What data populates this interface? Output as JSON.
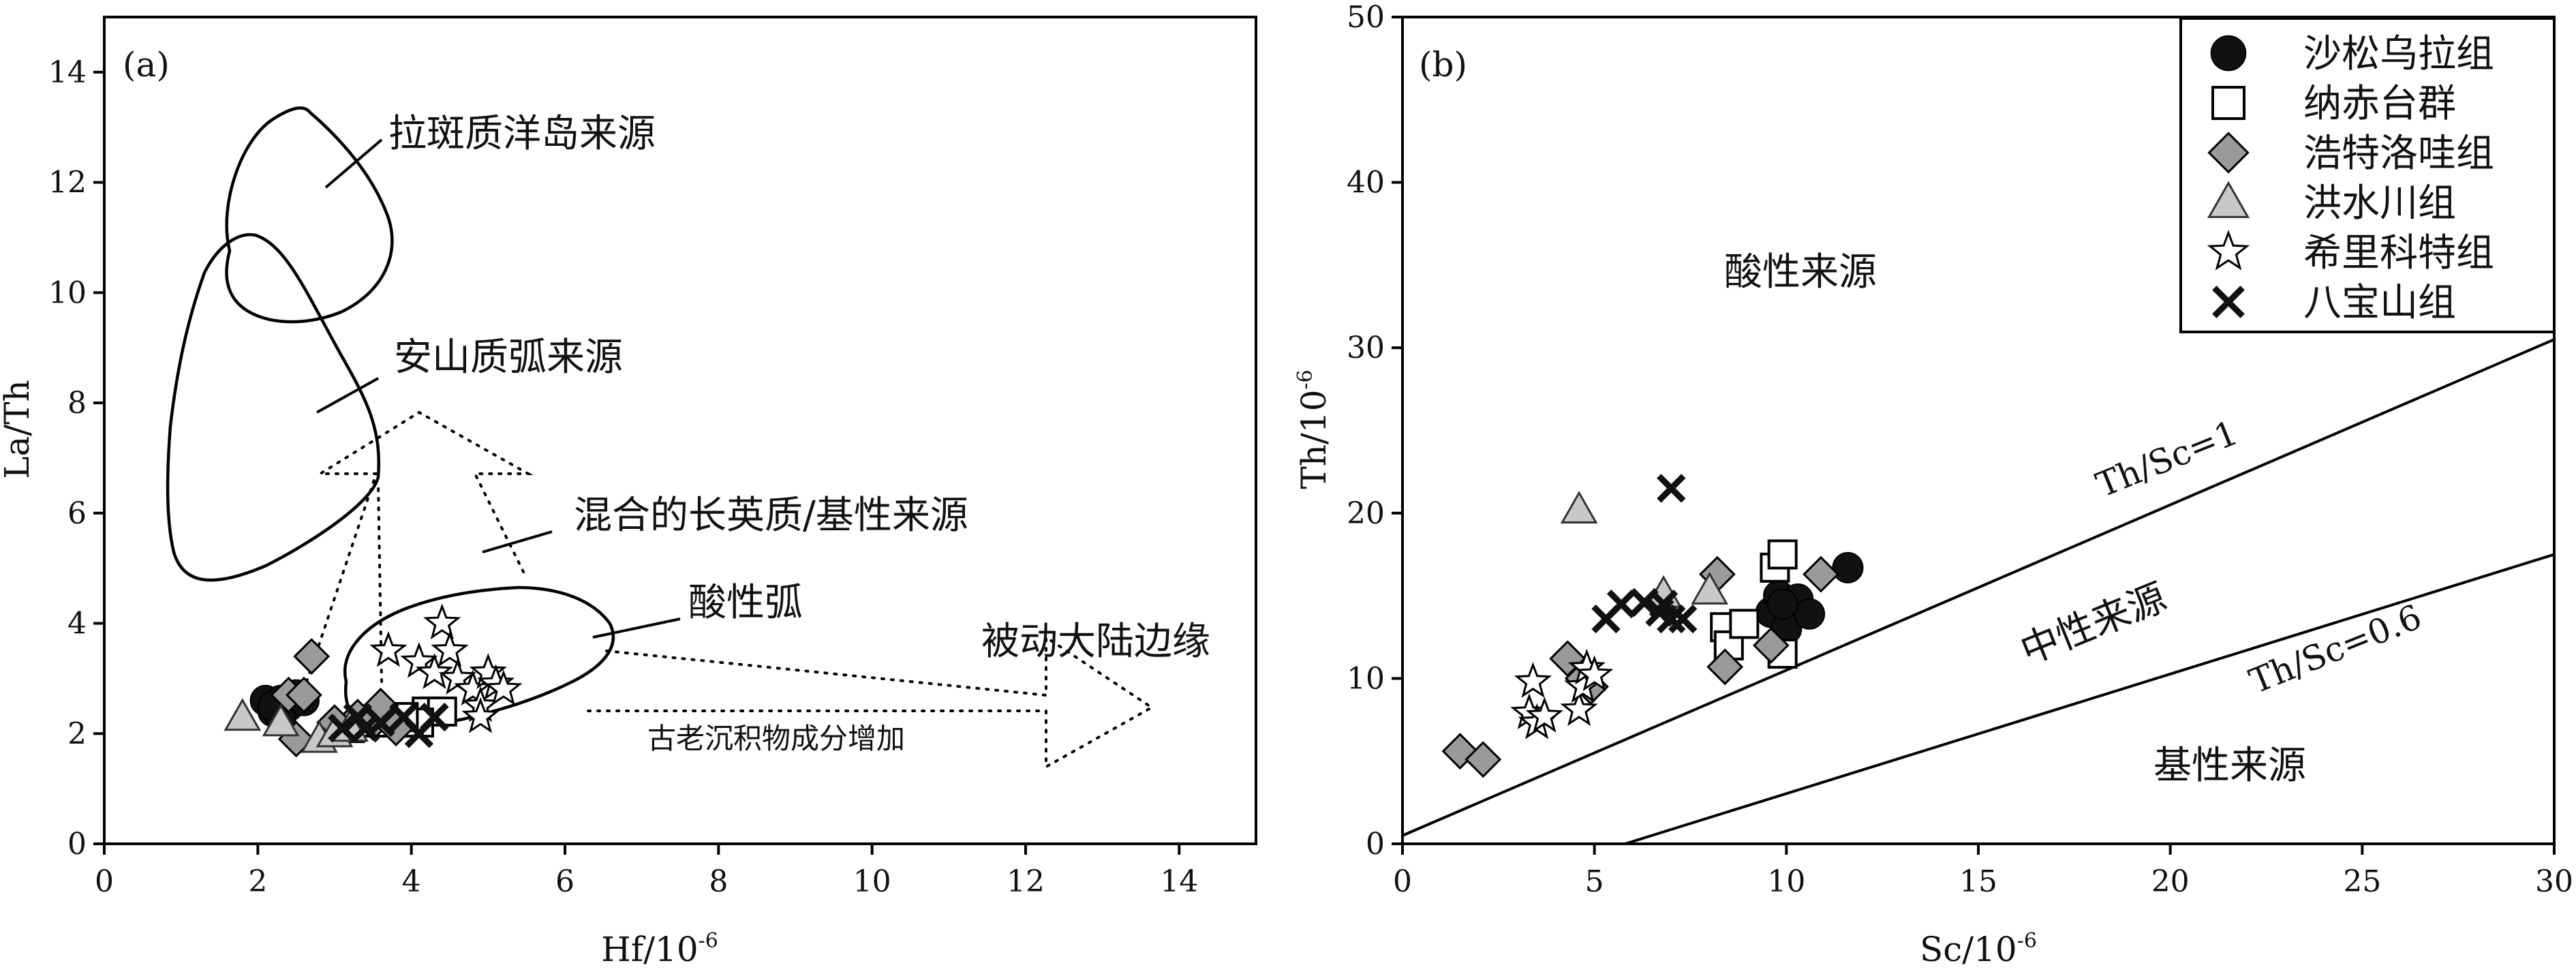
{
  "chart_data": [
    {
      "type": "scatter",
      "panel_label": "(a)",
      "xlabel": "Hf/10",
      "xlabel_sup": "-6",
      "ylabel": "La/Th",
      "xlim": [
        0,
        15
      ],
      "ylim": [
        0,
        15
      ],
      "xticks": [
        0,
        2,
        4,
        6,
        8,
        10,
        12,
        14
      ],
      "yticks": [
        0,
        2,
        4,
        6,
        8,
        10,
        12,
        14
      ],
      "fields": [
        {
          "label": "拉斑质洋岛来源"
        },
        {
          "label": "安山质弧来源"
        },
        {
          "label": "混合的长英质/基性来源"
        },
        {
          "label": "酸性弧"
        },
        {
          "label": "被动大陆边缘"
        }
      ],
      "annotations": [
        "古老沉积物成分增加"
      ],
      "series": [
        {
          "name": "沙松乌拉组",
          "marker": "filled-circle",
          "points": [
            [
              2.1,
              2.6
            ],
            [
              2.2,
              2.4
            ],
            [
              2.3,
              2.6
            ],
            [
              2.4,
              2.5
            ],
            [
              2.5,
              2.7
            ],
            [
              2.3,
              2.3
            ],
            [
              2.6,
              2.6
            ],
            [
              2.2,
              2.5
            ]
          ]
        },
        {
          "name": "纳赤台群",
          "marker": "open-square",
          "points": [
            [
              3.2,
              2.1
            ],
            [
              3.5,
              2.2
            ],
            [
              3.8,
              2.3
            ],
            [
              4.0,
              2.2
            ],
            [
              4.2,
              2.4
            ],
            [
              4.4,
              2.4
            ],
            [
              4.1,
              2.2
            ],
            [
              3.9,
              2.3
            ]
          ]
        },
        {
          "name": "浩特洛哇组",
          "marker": "gray-diamond",
          "points": [
            [
              2.7,
              3.4
            ],
            [
              2.4,
              2.7
            ],
            [
              2.6,
              2.7
            ],
            [
              2.5,
              1.9
            ],
            [
              3.3,
              2.3
            ],
            [
              3.5,
              2.2
            ],
            [
              3.6,
              2.5
            ],
            [
              3.8,
              2.1
            ],
            [
              3.0,
              2.2
            ]
          ]
        },
        {
          "name": "洪水川组",
          "marker": "gray-triangle",
          "points": [
            [
              1.8,
              2.3
            ],
            [
              2.3,
              2.2
            ],
            [
              2.8,
              1.9
            ],
            [
              3.0,
              2.0
            ],
            [
              3.2,
              2.1
            ]
          ]
        },
        {
          "name": "希里科特组",
          "marker": "open-star",
          "points": [
            [
              3.7,
              3.5
            ],
            [
              4.1,
              3.3
            ],
            [
              4.4,
              4.0
            ],
            [
              4.5,
              3.5
            ],
            [
              4.3,
              3.1
            ],
            [
              4.6,
              3.0
            ],
            [
              4.8,
              2.8
            ],
            [
              4.9,
              2.5
            ],
            [
              5.0,
              3.1
            ],
            [
              5.1,
              2.9
            ],
            [
              5.2,
              2.8
            ],
            [
              4.9,
              2.3
            ]
          ]
        },
        {
          "name": "八宝山组",
          "marker": "cross",
          "points": [
            [
              3.1,
              2.1
            ],
            [
              3.3,
              2.3
            ],
            [
              3.6,
              2.2
            ],
            [
              3.9,
              2.3
            ],
            [
              4.1,
              2.0
            ],
            [
              4.3,
              2.3
            ],
            [
              3.4,
              2.1
            ]
          ]
        }
      ]
    },
    {
      "type": "scatter",
      "panel_label": "(b)",
      "xlabel": "Sc/10",
      "xlabel_sup": "-6",
      "ylabel": "Th/10",
      "ylabel_sup": "-6",
      "xlim": [
        0,
        30
      ],
      "ylim": [
        0,
        50
      ],
      "xticks": [
        0,
        5,
        10,
        15,
        20,
        25,
        30
      ],
      "yticks": [
        0,
        10,
        20,
        30,
        40,
        50
      ],
      "lines": [
        {
          "label": "Th/Sc=1",
          "points": [
            [
              0,
              0.5
            ],
            [
              30,
              30.5
            ]
          ]
        },
        {
          "label": "Th/Sc=0.6",
          "points": [
            [
              5.8,
              0
            ],
            [
              30,
              17.5
            ]
          ]
        }
      ],
      "regions": [
        "酸性来源",
        "中性来源",
        "基性来源"
      ],
      "legend_position": "top-right",
      "series": [
        {
          "name": "沙松乌拉组",
          "marker": "filled-circle",
          "points": [
            [
              9.6,
              14.0
            ],
            [
              9.8,
              15.0
            ],
            [
              10.0,
              13.0
            ],
            [
              10.3,
              14.8
            ],
            [
              10.6,
              13.9
            ],
            [
              11.6,
              16.7
            ],
            [
              9.9,
              14.5
            ]
          ]
        },
        {
          "name": "纳赤台群",
          "marker": "open-square",
          "points": [
            [
              8.4,
              13.1
            ],
            [
              8.5,
              12.0
            ],
            [
              8.9,
              13.3
            ],
            [
              9.7,
              16.7
            ],
            [
              9.9,
              17.5
            ],
            [
              9.9,
              11.5
            ]
          ]
        },
        {
          "name": "浩特洛哇组",
          "marker": "gray-diamond",
          "points": [
            [
              1.5,
              5.6
            ],
            [
              2.1,
              5.1
            ],
            [
              4.3,
              11.2
            ],
            [
              4.7,
              10.0
            ],
            [
              4.9,
              9.5
            ],
            [
              8.2,
              16.3
            ],
            [
              8.4,
              10.7
            ],
            [
              9.6,
              12.0
            ],
            [
              10.9,
              16.3
            ]
          ]
        },
        {
          "name": "洪水川组",
          "marker": "gray-triangle",
          "points": [
            [
              4.6,
              20.2
            ],
            [
              6.8,
              15.1
            ],
            [
              8.0,
              15.3
            ]
          ]
        },
        {
          "name": "希里科特组",
          "marker": "open-star",
          "points": [
            [
              3.3,
              7.9
            ],
            [
              3.4,
              9.8
            ],
            [
              3.5,
              7.3
            ],
            [
              3.7,
              7.7
            ],
            [
              4.6,
              8.1
            ],
            [
              4.7,
              9.5
            ],
            [
              4.8,
              10.6
            ],
            [
              5.0,
              10.2
            ]
          ]
        },
        {
          "name": "八宝山组",
          "marker": "cross",
          "points": [
            [
              5.3,
              13.6
            ],
            [
              5.7,
              14.5
            ],
            [
              6.3,
              14.6
            ],
            [
              6.7,
              14.0
            ],
            [
              7.0,
              13.6
            ],
            [
              7.0,
              21.5
            ],
            [
              7.3,
              13.6
            ],
            [
              6.8,
              14.5
            ]
          ]
        }
      ]
    }
  ]
}
